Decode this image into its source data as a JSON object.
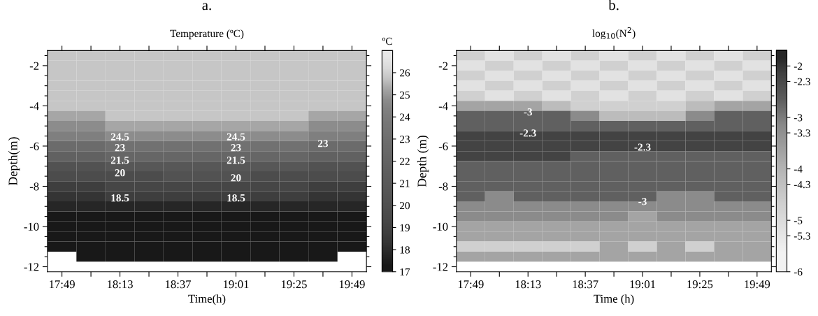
{
  "chart_data": [
    {
      "type": "heatmap",
      "title": "a.",
      "subtitle": "Temperature (ºC)",
      "xlabel": "Time(h)",
      "ylabel": "Depth(m)",
      "clabel": "ºC",
      "categories": [
        "17:49",
        null,
        "18:13",
        null,
        "18:37",
        null,
        "19:01",
        null,
        "19:25",
        null,
        "19:49"
      ],
      "y_categories": [
        null,
        "-2",
        null,
        null,
        null,
        "-4",
        null,
        null,
        null,
        "-6",
        null,
        null,
        null,
        "-8",
        null,
        null,
        null,
        "-10",
        null,
        null,
        null,
        "-12"
      ],
      "cells": [
        [
          25.75,
          25.75,
          25.75,
          25.75,
          25.75,
          25.75,
          25.75,
          25.75,
          25.75,
          25.75,
          25.75
        ],
        [
          25.75,
          25.75,
          25.75,
          25.75,
          25.75,
          25.75,
          25.75,
          25.75,
          25.75,
          25.75,
          25.75
        ],
        [
          25.75,
          25.75,
          25.75,
          25.75,
          25.75,
          25.75,
          25.75,
          25.75,
          25.75,
          25.75,
          25.75
        ],
        [
          25.75,
          25.75,
          25.75,
          25.75,
          25.75,
          25.75,
          25.75,
          25.75,
          25.75,
          25.75,
          25.75
        ],
        [
          25.75,
          25.75,
          25.75,
          25.75,
          25.75,
          25.75,
          25.75,
          25.75,
          25.75,
          25.75,
          25.75
        ],
        [
          25.75,
          25.75,
          25.75,
          25.75,
          25.75,
          25.75,
          25.75,
          25.75,
          25.75,
          25.75,
          25.75
        ],
        [
          25.25,
          25.25,
          25.75,
          25.75,
          25.75,
          25.75,
          25.75,
          25.75,
          25.75,
          25.25,
          25.25
        ],
        [
          24.75,
          24.75,
          25.25,
          25.25,
          25.25,
          25.25,
          25.25,
          25.25,
          25.25,
          24.75,
          24.75
        ],
        [
          24.25,
          24.25,
          24.75,
          24.75,
          24.75,
          24.75,
          24.75,
          24.75,
          24.75,
          24.25,
          24.25
        ],
        [
          22.75,
          22.75,
          23.25,
          23.25,
          23.25,
          23.25,
          23.25,
          23.25,
          23.25,
          22.75,
          22.75
        ],
        [
          21.75,
          21.75,
          22.25,
          22.25,
          22.25,
          22.25,
          22.25,
          22.25,
          22.25,
          21.75,
          21.75
        ],
        [
          20.25,
          20.25,
          20.75,
          20.75,
          20.75,
          20.75,
          20.75,
          20.75,
          20.75,
          20.25,
          20.25
        ],
        [
          19.75,
          19.75,
          19.75,
          19.75,
          20.25,
          20.25,
          20.25,
          19.75,
          19.75,
          19.75,
          19.75
        ],
        [
          18.75,
          18.75,
          19.25,
          19.25,
          19.25,
          19.25,
          19.25,
          19.25,
          19.25,
          18.75,
          18.75
        ],
        [
          18.25,
          18.25,
          18.75,
          18.75,
          18.75,
          18.75,
          18.75,
          18.75,
          18.75,
          18.25,
          18.25
        ],
        [
          17.75,
          17.75,
          17.75,
          17.75,
          17.75,
          17.75,
          17.75,
          17.75,
          17.75,
          17.75,
          17.75
        ],
        [
          17.25,
          17.25,
          17.25,
          17.25,
          17.25,
          17.25,
          17.25,
          17.25,
          17.25,
          17.25,
          17.25
        ],
        [
          17.25,
          17.25,
          17.25,
          17.25,
          17.25,
          17.25,
          17.25,
          17.25,
          17.25,
          17.25,
          17.25
        ],
        [
          17.25,
          17.25,
          17.25,
          17.25,
          17.25,
          17.25,
          17.25,
          17.25,
          17.25,
          17.25,
          17.25
        ],
        [
          17.25,
          17.25,
          17.25,
          17.25,
          17.25,
          17.25,
          17.25,
          17.25,
          17.25,
          17.25,
          17.25
        ],
        [
          null,
          17.25,
          17.25,
          17.25,
          17.25,
          17.25,
          17.25,
          17.25,
          17.25,
          17.25,
          null
        ],
        [
          null,
          null,
          null,
          null,
          null,
          null,
          null,
          null,
          null,
          null,
          null
        ]
      ],
      "clim": [
        17,
        27
      ],
      "cticks": [
        17,
        18,
        19,
        20,
        21,
        22,
        23,
        24,
        25,
        26
      ],
      "colors": [
        "#181818",
        "#262626",
        "#343434",
        "#3e3e3e",
        "#464646",
        "#4c4c4c",
        "#525252",
        "#575757",
        "#5c5c5c",
        "#616161",
        "#666666",
        "#6b6b6b",
        "#717171",
        "#777777",
        "#7f7f7f",
        "#8c8c8c",
        "#a6a6a6",
        "#c6c6c6",
        "#dcdcdc",
        "#e8e8e8"
      ],
      "annotations": [
        "23",
        "18.5",
        "24.5",
        "23",
        "21.5",
        "20",
        "24.5",
        "23",
        "21.5",
        "20",
        "18.5"
      ]
    },
    {
      "type": "heatmap",
      "title": "b.",
      "subtitle": "log$_{10}$(N$^{2}$)",
      "xlabel": "Time (h)",
      "ylabel": "Depth (m)",
      "categories": [
        "17:49",
        null,
        "18:13",
        null,
        "18:37",
        null,
        "19:01",
        null,
        "19:25",
        null,
        "19:49"
      ],
      "y_categories": [
        null,
        "-2",
        null,
        null,
        null,
        "-4",
        null,
        null,
        null,
        "-6",
        null,
        null,
        null,
        "-8",
        null,
        null,
        null,
        "-10",
        null,
        null,
        null,
        "-12"
      ],
      "cells": [
        [
          -4.7,
          -5.2,
          -4.7,
          -5.2,
          -4.7,
          -5.2,
          -4.7,
          -5.2,
          -4.7,
          -5.2,
          -4.7
        ],
        [
          -5.2,
          -4.7,
          -5.2,
          -4.7,
          -5.2,
          -4.7,
          -5.2,
          -4.7,
          -5.2,
          -4.7,
          -5.2
        ],
        [
          -4.7,
          -5.2,
          -4.7,
          -5.2,
          -4.7,
          -5.2,
          -4.7,
          -5.2,
          -4.7,
          -5.2,
          -4.7
        ],
        [
          -5.2,
          -4.7,
          -5.2,
          -4.7,
          -5.2,
          -4.7,
          -5.2,
          -4.7,
          -5.2,
          -4.7,
          -5.2
        ],
        [
          -4.7,
          -5.2,
          -4.7,
          -5.2,
          -4.7,
          -5.2,
          -4.7,
          -5.2,
          -4.7,
          -5.2,
          -4.7
        ],
        [
          -3.7,
          -3.7,
          -3.7,
          -4.2,
          -4.7,
          -4.7,
          -4.7,
          -4.7,
          -4.2,
          -3.7,
          -3.7
        ],
        [
          -2.7,
          -2.7,
          -2.7,
          -2.7,
          -3.2,
          -4.2,
          -4.2,
          -4.2,
          -3.2,
          -2.7,
          -2.7
        ],
        [
          -2.7,
          -2.7,
          -2.7,
          -2.7,
          -2.7,
          -2.7,
          -2.7,
          -2.7,
          -2.7,
          -2.7,
          -2.7
        ],
        [
          -2.2,
          -2.2,
          -2.2,
          -2.2,
          -2.2,
          -2.2,
          -2.2,
          -2.2,
          -2.2,
          -2.2,
          -2.2
        ],
        [
          -2.2,
          -2.2,
          -2.2,
          -2.2,
          -2.2,
          -2.2,
          -2.2,
          -2.2,
          -2.2,
          -2.2,
          -2.2
        ],
        [
          -2.2,
          -2.2,
          -2.2,
          -2.2,
          -2.7,
          -2.7,
          -2.7,
          -2.7,
          -2.7,
          -2.7,
          -2.7
        ],
        [
          -2.7,
          -2.7,
          -2.7,
          -2.7,
          -2.7,
          -2.7,
          -2.7,
          -2.7,
          -2.7,
          -2.7,
          -2.7
        ],
        [
          -2.7,
          -2.7,
          -2.7,
          -2.7,
          -2.7,
          -2.7,
          -2.7,
          -2.7,
          -2.7,
          -2.7,
          -2.7
        ],
        [
          -2.7,
          -2.7,
          -2.7,
          -2.7,
          -2.7,
          -2.7,
          -2.7,
          -2.7,
          -2.7,
          -2.7,
          -2.7
        ],
        [
          -2.7,
          -3.2,
          -2.7,
          -2.7,
          -2.7,
          -2.7,
          -2.7,
          -3.2,
          -3.2,
          -2.7,
          -2.7
        ],
        [
          -3.2,
          -3.2,
          -3.2,
          -3.2,
          -3.2,
          -3.2,
          -3.2,
          -3.2,
          -3.2,
          -3.2,
          -3.2
        ],
        [
          -3.2,
          -3.2,
          -3.2,
          -3.2,
          -3.2,
          -3.2,
          -3.7,
          -3.2,
          -3.2,
          -3.2,
          -3.2
        ],
        [
          -3.7,
          -3.7,
          -3.7,
          -3.7,
          -3.7,
          -3.7,
          -3.7,
          -3.7,
          -3.7,
          -3.7,
          -3.7
        ],
        [
          -3.7,
          -3.7,
          -3.7,
          -3.7,
          -3.7,
          -3.7,
          -3.7,
          -3.7,
          -3.7,
          -3.7,
          -3.7
        ],
        [
          -4.7,
          -4.7,
          -4.7,
          -4.7,
          -4.7,
          -3.7,
          -4.7,
          -3.7,
          -4.7,
          -3.7,
          -3.7
        ],
        [
          -3.7,
          -3.7,
          -3.7,
          -3.7,
          -3.7,
          -3.7,
          -3.7,
          -3.7,
          -3.7,
          -3.7,
          -3.7
        ],
        [
          null,
          null,
          null,
          null,
          null,
          null,
          null,
          null,
          null,
          null,
          null
        ]
      ],
      "clim": [
        -6,
        -1.7
      ],
      "cticks": [
        -6,
        -5.3,
        -5,
        -4.3,
        -4,
        -3.3,
        -3,
        -2.3,
        -2
      ],
      "colors": [
        "#f2f2f2",
        "#e0e0e0",
        "#cecece",
        "#bababa",
        "#a2a2a2",
        "#888888",
        "#5c5c5c",
        "#404040",
        "#262626"
      ],
      "annotations": [
        "-3",
        "-2.3",
        "-3",
        "-2.3"
      ]
    }
  ]
}
